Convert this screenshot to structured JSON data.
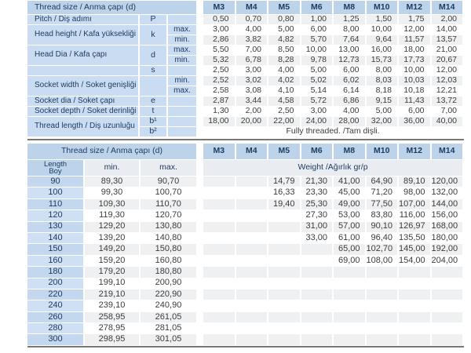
{
  "table1": {
    "title": "Thread size / Anma çapı (d)",
    "sizes": [
      "M3",
      "M4",
      "M5",
      "M6",
      "M8",
      "M10",
      "M12",
      "M14"
    ],
    "rows": [
      {
        "label": "Pitch / Diş adımı",
        "label_rowspan": 1,
        "symbol": "P",
        "symbol_rowspan": 1,
        "sub": "",
        "striped": true,
        "values": [
          "0,50",
          "0,70",
          "0,80",
          "1,00",
          "1,25",
          "1,50",
          "1,75",
          "2,00"
        ]
      },
      {
        "label": "Head height / Kafa yüksekliği",
        "label_rowspan": 2,
        "symbol": "k",
        "symbol_rowspan": 2,
        "sub": "max.",
        "striped": false,
        "values": [
          "3,00",
          "4,00",
          "5,00",
          "6,00",
          "8,00",
          "10,00",
          "12,00",
          "14,00"
        ]
      },
      {
        "sub": "min.",
        "striped": true,
        "values": [
          "2,86",
          "3,82",
          "4,82",
          "5,70",
          "7,64",
          "9,64",
          "11,57",
          "13,57"
        ]
      },
      {
        "label": "Head Dia / Kafa çapı",
        "label_rowspan": 2,
        "symbol": "d",
        "symbol_rowspan": 2,
        "sub": "max.",
        "striped": false,
        "values": [
          "5,50",
          "7,00",
          "8,50",
          "10,00",
          "13,00",
          "16,00",
          "18,00",
          "21,00"
        ]
      },
      {
        "sub": "min.",
        "striped": true,
        "values": [
          "5,32",
          "6,78",
          "8,28",
          "9,78",
          "12,73",
          "15,73",
          "17,73",
          "20,67"
        ]
      },
      {
        "label": "",
        "label_rowspan": 1,
        "symbol": "s",
        "symbol_rowspan": 1,
        "sub": "",
        "striped": false,
        "values": [
          "2,50",
          "3,00",
          "4,00",
          "5,00",
          "6,00",
          "8,00",
          "10,00",
          "12,00"
        ]
      },
      {
        "label": "Socket width / Soket genişliği",
        "label_rowspan": 2,
        "symbol": "",
        "symbol_rowspan": 2,
        "sub": "min.",
        "striped": true,
        "values": [
          "2,52",
          "3,02",
          "4,02",
          "5,02",
          "6,02",
          "8,03",
          "10,03",
          "12,03"
        ]
      },
      {
        "sub": "max.",
        "striped": false,
        "values": [
          "2,58",
          "3,08",
          "4,10",
          "5,14",
          "6,14",
          "8,18",
          "10,18",
          "12,21"
        ]
      },
      {
        "label": "Socket dia / Soket çapı",
        "label_rowspan": 1,
        "symbol": "e",
        "symbol_rowspan": 1,
        "sub": "",
        "striped": true,
        "values": [
          "2,87",
          "3,44",
          "4,58",
          "5,72",
          "6,86",
          "9,15",
          "11,43",
          "13,72"
        ]
      },
      {
        "label": "Socket depth / Soket derinliği",
        "label_rowspan": 1,
        "symbol": "t",
        "symbol_rowspan": 1,
        "sub": "",
        "striped": false,
        "values": [
          "1,30",
          "2,00",
          "2,50",
          "3,00",
          "4,00",
          "5,00",
          "6,00",
          "7,00"
        ]
      },
      {
        "label": "Thread length / Diş uzunluğu",
        "label_rowspan": 2,
        "symbol": "b¹",
        "symbol_rowspan": 1,
        "sub": "",
        "striped": true,
        "values": [
          "18,00",
          "20,00",
          "22,00",
          "24,00",
          "28,00",
          "32,00",
          "36,00",
          "40,00"
        ]
      },
      {
        "symbol": "b²",
        "symbol_rowspan": 1,
        "sub": "",
        "striped": false,
        "span_text": "Fully threaded. /Tam dişli."
      }
    ]
  },
  "table2": {
    "title": "Thread size / Anma çapı (d)",
    "sizes": [
      "M3",
      "M4",
      "M5",
      "M6",
      "M8",
      "M10",
      "M12",
      "M14"
    ],
    "length_label_line1": "Length",
    "length_label_line2": "Boy",
    "min_label": "min.",
    "max_label": "max.",
    "weight_label": "Weight /Ağırlık gr/p",
    "rows": [
      {
        "length": "90",
        "min": "89,30",
        "max": "90,70",
        "weights": [
          "",
          "",
          "14,79",
          "21,30",
          "41,00",
          "64,90",
          "89,10",
          "120,00"
        ]
      },
      {
        "length": "100",
        "min": "99,30",
        "max": "100,70",
        "weights": [
          "",
          "",
          "16,33",
          "23,30",
          "45,00",
          "71,20",
          "98,00",
          "132,00"
        ]
      },
      {
        "length": "110",
        "min": "109,30",
        "max": "110,70",
        "weights": [
          "",
          "",
          "19,40",
          "25,30",
          "49,00",
          "77,50",
          "107,00",
          "144,00"
        ]
      },
      {
        "length": "120",
        "min": "119,30",
        "max": "120,70",
        "weights": [
          "",
          "",
          "",
          "27,30",
          "53,00",
          "83,80",
          "116,00",
          "156,00"
        ]
      },
      {
        "length": "130",
        "min": "129,20",
        "max": "130,80",
        "weights": [
          "",
          "",
          "",
          "31,00",
          "57,00",
          "90,10",
          "126,97",
          "168,00"
        ]
      },
      {
        "length": "140",
        "min": "139,20",
        "max": "140,80",
        "weights": [
          "",
          "",
          "",
          "33,00",
          "61,00",
          "96,40",
          "135,50",
          "180,00"
        ]
      },
      {
        "length": "150",
        "min": "149,20",
        "max": "150,80",
        "weights": [
          "",
          "",
          "",
          "",
          "65,00",
          "102,70",
          "145,00",
          "192,00"
        ]
      },
      {
        "length": "160",
        "min": "159,20",
        "max": "160,80",
        "weights": [
          "",
          "",
          "",
          "",
          "69,00",
          "108,00",
          "154,00",
          "204,00"
        ]
      },
      {
        "length": "180",
        "min": "179,20",
        "max": "180,80",
        "weights": [
          "",
          "",
          "",
          "",
          "",
          "",
          "",
          ""
        ]
      },
      {
        "length": "200",
        "min": "199,10",
        "max": "200,90",
        "weights": [
          "",
          "",
          "",
          "",
          "",
          "",
          "",
          ""
        ]
      },
      {
        "length": "220",
        "min": "219,10",
        "max": "220,90",
        "weights": [
          "",
          "",
          "",
          "",
          "",
          "",
          "",
          ""
        ]
      },
      {
        "length": "240",
        "min": "239,10",
        "max": "240,90",
        "weights": [
          "",
          "",
          "",
          "",
          "",
          "",
          "",
          ""
        ]
      },
      {
        "length": "260",
        "min": "258,95",
        "max": "261,05",
        "weights": [
          "",
          "",
          "",
          "",
          "",
          "",
          "",
          ""
        ]
      },
      {
        "length": "280",
        "min": "278,95",
        "max": "281,05",
        "weights": [
          "",
          "",
          "",
          "",
          "",
          "",
          "",
          ""
        ]
      },
      {
        "length": "300",
        "min": "298,95",
        "max": "301,05",
        "weights": [
          "",
          "",
          "",
          "",
          "",
          "",
          "",
          ""
        ]
      }
    ]
  }
}
